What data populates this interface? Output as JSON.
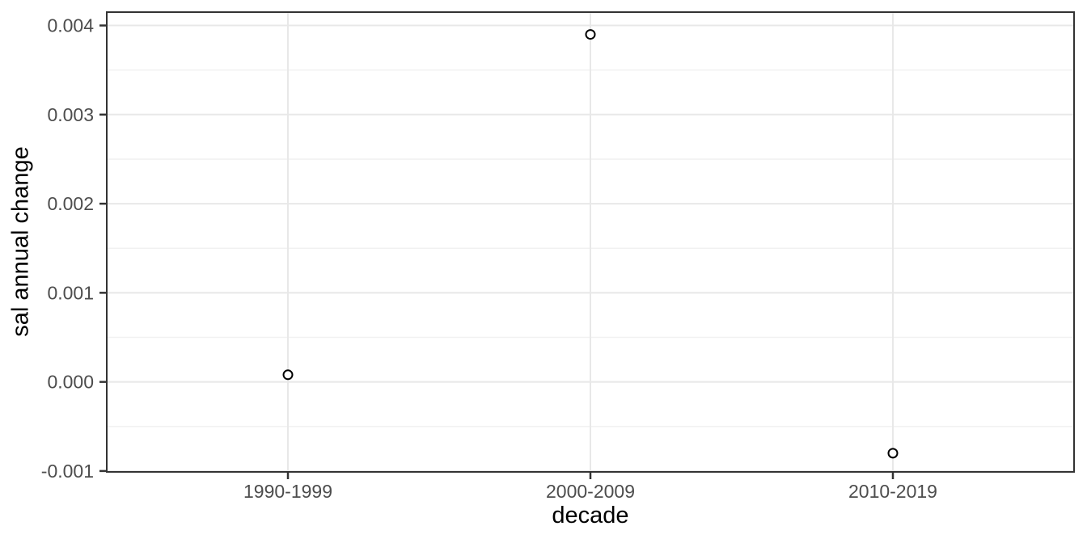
{
  "figure": {
    "background": "#ffffff"
  },
  "chart_data": {
    "type": "scatter",
    "title": "",
    "xlabel": "decade",
    "ylabel": "sal annual change",
    "categories": [
      "1990-1999",
      "2000-2009",
      "2010-2019"
    ],
    "values": [
      8e-05,
      0.0039,
      -0.0008
    ],
    "ylim": [
      -0.00101,
      0.00415
    ],
    "yticks": [
      {
        "value": -0.001,
        "label": "-0.001"
      },
      {
        "value": 0.0,
        "label": "0.000"
      },
      {
        "value": 0.001,
        "label": "0.001"
      },
      {
        "value": 0.002,
        "label": "0.002"
      },
      {
        "value": 0.003,
        "label": "0.003"
      },
      {
        "value": 0.004,
        "label": "0.004"
      }
    ],
    "yticks_minor": [
      -0.0005,
      0.0005,
      0.0015,
      0.0025,
      0.0035
    ],
    "grid": "horizontal major+minor, vertical major at categories",
    "legend": "none",
    "marker": {
      "shape": "open-circle",
      "radius": 5.5,
      "stroke": "#000000",
      "fill": "#ffffff"
    }
  },
  "style": {
    "panel_border_color": "#333333",
    "grid_major_color": "#e8e8e8",
    "grid_minor_color": "#f1f1f1",
    "tick_mark_color": "#333333",
    "tick_label_color": "#4d4d4d",
    "axis_title_color": "#000000"
  }
}
